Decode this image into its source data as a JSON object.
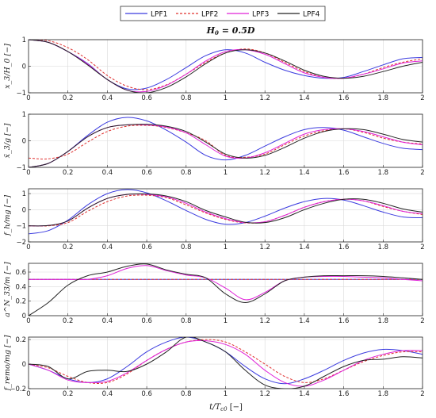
{
  "chart_data": {
    "title": "H_0 = 0.5D",
    "legend": {
      "placement": "top-center",
      "entries": [
        {
          "name": "LPF1",
          "color": "#3b3bdf",
          "dash": "solid"
        },
        {
          "name": "LPF2",
          "color": "#e0302f",
          "dash": "dashed"
        },
        {
          "name": "LPF3",
          "color": "#e020d8",
          "dash": "solid"
        },
        {
          "name": "LPF4",
          "color": "#222222",
          "dash": "solid"
        }
      ]
    },
    "xlabel": "t/T_c0 [−]",
    "xlim": [
      0,
      2
    ],
    "xticks": [
      0,
      0.2,
      0.4,
      0.6,
      0.8,
      1,
      1.2,
      1.4,
      1.6,
      1.8,
      2
    ],
    "xtick_labels": [
      "0",
      "0.2",
      "0.4",
      "0.6",
      "0.8",
      "1",
      "1.2",
      "1.4",
      "1.6",
      "1.8",
      "2"
    ],
    "grid": true,
    "panels": [
      {
        "type": "line",
        "ylabel": "x_3/H_0 [−]",
        "ylim": [
          -1,
          1
        ],
        "yticks": [
          -1,
          0,
          1
        ],
        "ytick_labels": [
          "−1",
          "0",
          "1"
        ],
        "x": [
          0,
          0.1,
          0.2,
          0.3,
          0.4,
          0.5,
          0.6,
          0.7,
          0.8,
          0.9,
          1.0,
          1.1,
          1.2,
          1.3,
          1.4,
          1.5,
          1.6,
          1.7,
          1.8,
          1.9,
          2.0
        ],
        "series": [
          {
            "name": "LPF1",
            "values": [
              1.0,
              0.9,
              0.55,
              0.1,
              -0.5,
              -0.85,
              -0.82,
              -0.5,
              -0.05,
              0.4,
              0.62,
              0.5,
              0.15,
              -0.15,
              -0.35,
              -0.45,
              -0.42,
              -0.2,
              0.05,
              0.28,
              0.33
            ]
          },
          {
            "name": "LPF2",
            "values": [
              1.0,
              0.96,
              0.7,
              0.25,
              -0.35,
              -0.75,
              -0.88,
              -0.7,
              -0.3,
              0.15,
              0.5,
              0.65,
              0.5,
              0.15,
              -0.2,
              -0.42,
              -0.45,
              -0.3,
              -0.05,
              0.15,
              0.28
            ]
          },
          {
            "name": "LPF3",
            "values": [
              1.0,
              0.9,
              0.55,
              0.08,
              -0.5,
              -0.9,
              -0.95,
              -0.72,
              -0.3,
              0.2,
              0.55,
              0.62,
              0.45,
              0.1,
              -0.25,
              -0.42,
              -0.45,
              -0.3,
              -0.1,
              0.12,
              0.2
            ]
          },
          {
            "name": "LPF4",
            "values": [
              1.0,
              0.9,
              0.55,
              0.05,
              -0.5,
              -0.9,
              -1.0,
              -0.8,
              -0.4,
              0.1,
              0.5,
              0.62,
              0.5,
              0.2,
              -0.15,
              -0.38,
              -0.45,
              -0.38,
              -0.2,
              0.0,
              0.15
            ]
          }
        ]
      },
      {
        "type": "line",
        "ylabel": "ẍ_3/g [−]",
        "ylim": [
          -1,
          1
        ],
        "yticks": [
          -1,
          0,
          1
        ],
        "ytick_labels": [
          "−1",
          "0",
          "1"
        ],
        "x": [
          0,
          0.1,
          0.2,
          0.3,
          0.4,
          0.5,
          0.6,
          0.7,
          0.8,
          0.9,
          1.0,
          1.1,
          1.2,
          1.3,
          1.4,
          1.5,
          1.6,
          1.7,
          1.8,
          1.9,
          2.0
        ],
        "series": [
          {
            "name": "LPF1",
            "values": [
              -1.0,
              -0.85,
              -0.4,
              0.2,
              0.7,
              0.88,
              0.75,
              0.4,
              -0.05,
              -0.55,
              -0.72,
              -0.55,
              -0.2,
              0.15,
              0.42,
              0.5,
              0.4,
              0.15,
              -0.1,
              -0.28,
              -0.33
            ]
          },
          {
            "name": "LPF2",
            "values": [
              -0.65,
              -0.68,
              -0.5,
              -0.05,
              0.35,
              0.55,
              0.58,
              0.5,
              0.3,
              0.0,
              -0.55,
              -0.62,
              -0.5,
              -0.15,
              0.18,
              0.38,
              0.45,
              0.32,
              0.1,
              -0.05,
              -0.12
            ]
          },
          {
            "name": "LPF3",
            "values": [
              -1.0,
              -0.85,
              -0.4,
              0.15,
              0.5,
              0.6,
              0.6,
              0.52,
              0.3,
              -0.15,
              -0.58,
              -0.65,
              -0.45,
              -0.1,
              0.25,
              0.42,
              0.45,
              0.35,
              0.15,
              -0.05,
              -0.15
            ]
          },
          {
            "name": "LPF4",
            "values": [
              -1.0,
              -0.85,
              -0.4,
              0.15,
              0.5,
              0.6,
              0.62,
              0.55,
              0.35,
              -0.05,
              -0.5,
              -0.65,
              -0.55,
              -0.25,
              0.1,
              0.35,
              0.45,
              0.42,
              0.25,
              0.05,
              -0.05
            ]
          }
        ]
      },
      {
        "type": "line",
        "ylabel": "f_h/mg [−]",
        "ylim": [
          -2,
          1.3
        ],
        "yticks": [
          -2,
          -1,
          0,
          1
        ],
        "ytick_labels": [
          "−2",
          "−1",
          "0",
          "1"
        ],
        "x": [
          0,
          0.1,
          0.2,
          0.3,
          0.4,
          0.5,
          0.6,
          0.7,
          0.8,
          0.9,
          1.0,
          1.1,
          1.2,
          1.3,
          1.4,
          1.5,
          1.6,
          1.7,
          1.8,
          1.9,
          2.0
        ],
        "series": [
          {
            "name": "LPF1",
            "values": [
              -1.5,
              -1.3,
              -0.65,
              0.3,
              1.0,
              1.25,
              1.05,
              0.55,
              -0.05,
              -0.6,
              -0.9,
              -0.8,
              -0.4,
              0.1,
              0.5,
              0.7,
              0.6,
              0.25,
              -0.15,
              -0.45,
              -0.5
            ]
          },
          {
            "name": "LPF2",
            "values": [
              -1.0,
              -1.0,
              -0.8,
              -0.1,
              0.5,
              0.85,
              0.9,
              0.75,
              0.3,
              -0.2,
              -0.6,
              -0.82,
              -0.75,
              -0.35,
              0.15,
              0.5,
              0.65,
              0.55,
              0.2,
              -0.1,
              -0.3
            ]
          },
          {
            "name": "LPF3",
            "values": [
              -1.0,
              -0.98,
              -0.7,
              0.1,
              0.7,
              0.95,
              0.95,
              0.8,
              0.4,
              -0.15,
              -0.55,
              -0.8,
              -0.75,
              -0.35,
              0.15,
              0.5,
              0.65,
              0.55,
              0.25,
              -0.1,
              -0.25
            ]
          },
          {
            "name": "LPF4",
            "values": [
              -1.0,
              -0.98,
              -0.7,
              0.1,
              0.7,
              0.95,
              0.98,
              0.85,
              0.5,
              -0.05,
              -0.45,
              -0.78,
              -0.8,
              -0.5,
              0.0,
              0.4,
              0.65,
              0.65,
              0.4,
              0.05,
              -0.15
            ]
          }
        ]
      },
      {
        "type": "line",
        "ylabel": "a^N_33/m [−]",
        "ylim": [
          0,
          0.72
        ],
        "yticks": [
          0,
          0.2,
          0.4,
          0.6
        ],
        "ytick_labels": [
          "0",
          "0.2",
          "0.4",
          "0.6"
        ],
        "x": [
          0,
          0.1,
          0.2,
          0.3,
          0.4,
          0.5,
          0.6,
          0.7,
          0.8,
          0.9,
          1.0,
          1.1,
          1.2,
          1.3,
          1.4,
          1.5,
          1.6,
          1.7,
          1.8,
          1.9,
          2.0
        ],
        "series": [
          {
            "name": "LPF1",
            "values": [
              0.5,
              0.5,
              0.5,
              0.5,
              0.5,
              0.5,
              0.5,
              0.5,
              0.5,
              0.5,
              0.5,
              0.5,
              0.5,
              0.5,
              0.5,
              0.5,
              0.5,
              0.5,
              0.5,
              0.5,
              0.5
            ]
          },
          {
            "name": "LPF2",
            "values": [
              0.5,
              0.5,
              0.5,
              0.5,
              0.5,
              0.5,
              0.5,
              0.5,
              0.5,
              0.5,
              0.5,
              0.5,
              0.5,
              0.5,
              0.5,
              0.5,
              0.5,
              0.5,
              0.5,
              0.5,
              0.5
            ]
          },
          {
            "name": "LPF3",
            "values": [
              0.5,
              0.5,
              0.5,
              0.5,
              0.55,
              0.65,
              0.69,
              0.62,
              0.56,
              0.52,
              0.38,
              0.22,
              0.32,
              0.48,
              0.53,
              0.54,
              0.54,
              0.53,
              0.52,
              0.5,
              0.48
            ]
          },
          {
            "name": "LPF4",
            "values": [
              0.0,
              0.18,
              0.42,
              0.55,
              0.6,
              0.68,
              0.71,
              0.63,
              0.57,
              0.52,
              0.3,
              0.18,
              0.3,
              0.48,
              0.53,
              0.55,
              0.55,
              0.55,
              0.54,
              0.52,
              0.5
            ]
          }
        ]
      },
      {
        "type": "line",
        "ylabel": "f_remo/mg [−]",
        "ylim": [
          -0.2,
          0.22
        ],
        "yticks": [
          -0.2,
          0,
          0.2
        ],
        "ytick_labels": [
          "−0.2",
          "0",
          "0.2"
        ],
        "x": [
          0,
          0.1,
          0.2,
          0.3,
          0.4,
          0.5,
          0.6,
          0.7,
          0.8,
          0.9,
          1.0,
          1.1,
          1.2,
          1.3,
          1.4,
          1.5,
          1.6,
          1.7,
          1.8,
          1.9,
          2.0
        ],
        "series": [
          {
            "name": "LPF1",
            "values": [
              0.0,
              -0.05,
              -0.12,
              -0.15,
              -0.12,
              -0.02,
              0.1,
              0.18,
              0.22,
              0.18,
              0.1,
              -0.02,
              -0.12,
              -0.16,
              -0.12,
              -0.05,
              0.03,
              0.09,
              0.12,
              0.11,
              0.08
            ]
          },
          {
            "name": "LPF2",
            "values": [
              0.0,
              -0.03,
              -0.1,
              -0.15,
              -0.15,
              -0.08,
              0.03,
              0.12,
              0.18,
              0.2,
              0.18,
              0.1,
              0.0,
              -0.1,
              -0.15,
              -0.12,
              -0.05,
              0.02,
              0.07,
              0.1,
              0.1
            ]
          },
          {
            "name": "LPF3",
            "values": [
              0.0,
              -0.05,
              -0.13,
              -0.15,
              -0.14,
              -0.07,
              0.03,
              0.12,
              0.18,
              0.19,
              0.16,
              0.08,
              -0.05,
              -0.15,
              -0.18,
              -0.13,
              -0.05,
              0.03,
              0.08,
              0.11,
              0.11
            ]
          },
          {
            "name": "LPF4",
            "values": [
              0.0,
              -0.02,
              -0.12,
              -0.06,
              -0.05,
              -0.06,
              0.0,
              0.1,
              0.22,
              0.18,
              0.1,
              -0.05,
              -0.17,
              -0.2,
              -0.18,
              -0.1,
              -0.02,
              0.03,
              0.04,
              0.06,
              0.05
            ]
          }
        ]
      }
    ]
  }
}
